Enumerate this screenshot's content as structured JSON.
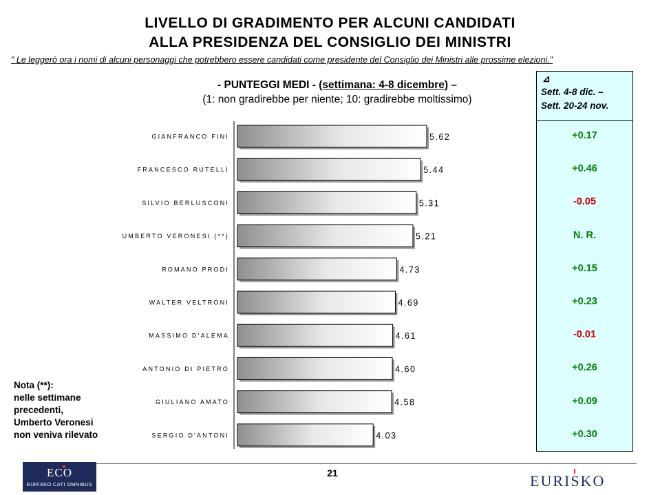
{
  "header": {
    "title_line1": "LIVELLO DI GRADIMENTO PER ALCUNI CANDIDATI",
    "title_line2": "ALLA PRESIDENZA DEL CONSIGLIO DEI MINISTRI",
    "quote": "\" Le leggerò ora i nomi di alcuni personaggi che potrebbero essere candidati come presidente del Consiglio dei Ministri alle prossime elezioni.\""
  },
  "subtitle": {
    "prefix": "- PUNTEGGI MEDI - ",
    "week": "(settimana: 4-8 dicembre)",
    "suffix": " –",
    "scale": "(1: non gradirebbe per niente; 10: gradirebbe moltissimo)"
  },
  "chart_data": {
    "type": "bar",
    "orientation": "horizontal",
    "categories": [
      "GIANFRANCO FINI",
      "FRANCESCO RUTELLI",
      "SILVIO BERLUSCONI",
      "UMBERTO VERONESI (**)",
      "ROMANO PRODI",
      "WALTER VELTRONI",
      "MASSIMO D'ALEMA",
      "ANTONIO DI PIETRO",
      "GIULIANO AMATO",
      "SERGIO D'ANTONI"
    ],
    "value_labels": [
      "5.62",
      "5.44",
      "5.31",
      "5.21",
      "4.73",
      "4.69",
      "4.61",
      "4.60",
      "4.58",
      "4.03"
    ],
    "values": [
      5.62,
      5.44,
      5.31,
      5.21,
      4.73,
      4.69,
      4.61,
      4.6,
      4.58,
      4.03
    ],
    "xlim": [
      0,
      5.62
    ],
    "grid": false,
    "legend": "none",
    "bar_fill": "gradient grey-to-white"
  },
  "panel": {
    "header_icon": "delta-icon",
    "header_symbol": "⊿",
    "header_line1": "Sett. 4-8 dic. –",
    "header_line2": "Sett. 20-24 nov.",
    "deltas": [
      {
        "text": "+0.17",
        "color": "#008000"
      },
      {
        "text": "+0.46",
        "color": "#008000"
      },
      {
        "text": "-0.05",
        "color": "#cc0000"
      },
      {
        "text": "N. R.",
        "color": "#008000"
      },
      {
        "text": "+0.15",
        "color": "#008000"
      },
      {
        "text": "+0.23",
        "color": "#008000"
      },
      {
        "text": "-0.01",
        "color": "#cc0000"
      },
      {
        "text": "+0.26",
        "color": "#008000"
      },
      {
        "text": "+0.09",
        "color": "#008000"
      },
      {
        "text": "+0.30",
        "color": "#008000"
      }
    ],
    "background": "#ddffff"
  },
  "note": {
    "line1": "Nota (**):",
    "line2": "nelle settimane",
    "line3": "precedenti,",
    "line4": "Umberto Veronesi",
    "line5": "non veniva rilevato"
  },
  "footer": {
    "page_number": "21",
    "left_logo": "ECO",
    "left_logo_sub": "EURISKO CATI OMNIBUS",
    "right_logo": "EURISKO"
  }
}
